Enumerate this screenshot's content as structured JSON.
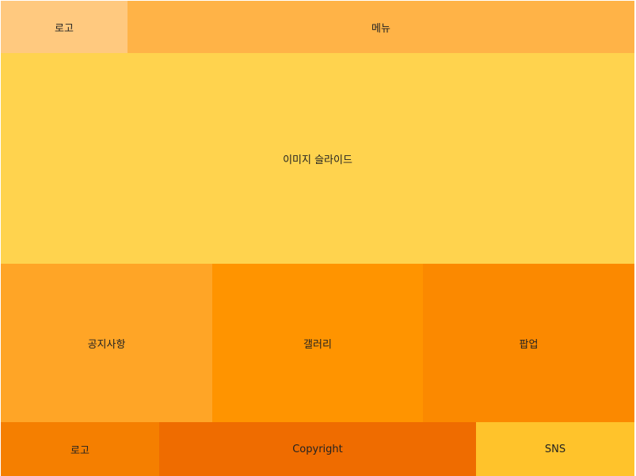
{
  "header": {
    "logo": "로고",
    "menu": "메뉴"
  },
  "slider": {
    "label": "이미지 슬라이드"
  },
  "content": {
    "notice": "공지사항",
    "gallery": "갤러리",
    "popup": "팝업"
  },
  "footer": {
    "logo": "로고",
    "copyright": "Copyright",
    "sns": "SNS"
  },
  "colors": {
    "header_logo": "#ffc97f",
    "header_menu": "#ffb347",
    "slider": "#ffd34e",
    "notice": "#ffa526",
    "gallery": "#ff9400",
    "popup": "#fb8900",
    "footer_logo": "#f57f00",
    "footer_copyright": "#ef6c00",
    "footer_sns": "#ffc32b"
  }
}
